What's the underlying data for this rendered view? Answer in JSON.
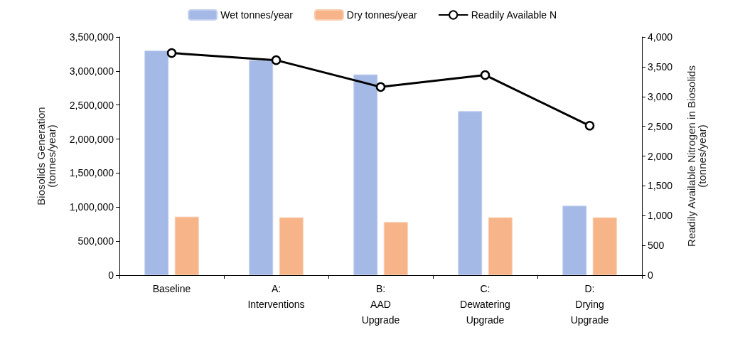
{
  "chart_data": {
    "type": "bar",
    "categories": [
      "Baseline",
      "A:\nInterventions",
      "B:\nAAD\nUpgrade",
      "C:\nDewatering\nUpgrade",
      "D:\nDrying\nUpgrade"
    ],
    "series": [
      {
        "name": "Wet tonnes/year",
        "color": "#a4b9e6",
        "values": [
          3300000,
          3160000,
          2950000,
          2410000,
          1020000
        ]
      },
      {
        "name": "Dry tonnes/year",
        "color": "#f6b488",
        "values": [
          860000,
          850000,
          780000,
          850000,
          850000
        ]
      },
      {
        "name": "Readily Available N",
        "type": "line",
        "axis": "y2",
        "color": "#000000",
        "values": [
          3730,
          3610,
          3160,
          3360,
          2510
        ]
      }
    ],
    "ylabel": "Biosolids Generation\n(tonnes/year)",
    "y2label": "Readily Available Nitrogen in Biosolids\n(tonnes/year)",
    "ylim": [
      0,
      3500000
    ],
    "yticks": [
      0,
      {
        "value": 500000,
        "label": "500,000"
      },
      {
        "value": 1000000,
        "label": "1,000,000"
      },
      {
        "value": 1500000,
        "label": "1,500,000"
      },
      {
        "value": 2000000,
        "label": "2,000,000"
      },
      {
        "value": 2500000,
        "label": "2,500,000"
      },
      {
        "value": 3000000,
        "label": "3,000,000"
      },
      {
        "value": 3500000,
        "label": "3,500,000"
      }
    ],
    "y2lim": [
      0,
      4000
    ],
    "y2ticks": [
      0,
      500,
      {
        "value": 1000,
        "label": "1,000"
      },
      {
        "value": 1500,
        "label": "1,500"
      },
      {
        "value": 2000,
        "label": "2,000"
      },
      {
        "value": 2500,
        "label": "2,500"
      },
      {
        "value": 3000,
        "label": "3,000"
      },
      {
        "value": 3500,
        "label": "3,500"
      },
      {
        "value": 4000,
        "label": "4,000"
      }
    ],
    "legend": "top",
    "marker": "circle",
    "line_style": "solid",
    "grid": false
  }
}
